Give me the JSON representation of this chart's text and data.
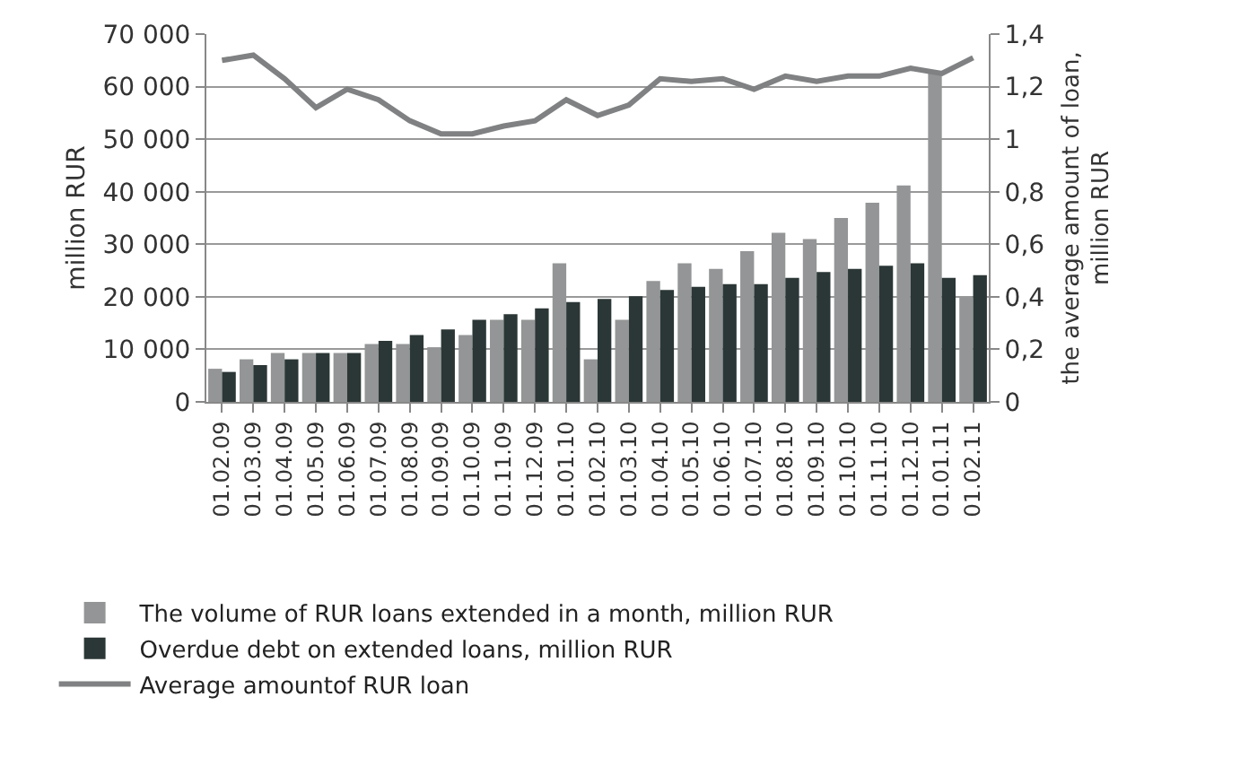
{
  "chart_data": {
    "type": "bar",
    "ylabel": "million RUR",
    "y2label": "the average amount of loan,\nmillion RUR",
    "categories": [
      "01.02.09",
      "01.03.09",
      "01.04.09",
      "01.05.09",
      "01.06.09",
      "01.07.09",
      "01.08.09",
      "01.09.09",
      "01.10.09",
      "01.11.09",
      "01.12.09",
      "01.01.10",
      "01.02.10",
      "01.03.10",
      "01.04.10",
      "01.05.10",
      "01.06.10",
      "01.07.10",
      "01.08.10",
      "01.09.10",
      "01.10.10",
      "01.11.10",
      "01.12.10",
      "01.01.11",
      "01.02.11"
    ],
    "series": [
      {
        "name": "The volume of RUR loans extended in a month, million RUR",
        "color": "#939596",
        "values": [
          6300,
          8100,
          9300,
          9300,
          9300,
          11000,
          11000,
          10400,
          12700,
          15600,
          15600,
          26400,
          8100,
          15600,
          23000,
          26400,
          25300,
          28700,
          32200,
          31000,
          35000,
          37900,
          41200,
          62600,
          19900
        ]
      },
      {
        "name": "Overdue debt on extended loans, million RUR",
        "color": "#2b3736",
        "values": [
          5700,
          7000,
          8100,
          9300,
          9300,
          11600,
          12700,
          13800,
          15600,
          16700,
          17800,
          19000,
          19600,
          20100,
          21300,
          21900,
          22400,
          22400,
          23600,
          24700,
          25300,
          25900,
          26400,
          23600,
          24100
        ]
      },
      {
        "name": "Average amountof RUR loan",
        "type": "line",
        "axis": "y2",
        "color": "#7f8182",
        "values": [
          1.3,
          1.32,
          1.23,
          1.12,
          1.19,
          1.15,
          1.07,
          1.02,
          1.02,
          1.05,
          1.07,
          1.15,
          1.09,
          1.13,
          1.23,
          1.22,
          1.23,
          1.19,
          1.24,
          1.22,
          1.24,
          1.24,
          1.27,
          1.25,
          1.31
        ]
      }
    ],
    "ylim": [
      0,
      70000
    ],
    "yticks": [
      0,
      {
        "value": 10000,
        "label": "10 000"
      },
      {
        "value": 20000,
        "label": "20 000"
      },
      {
        "value": 30000,
        "label": "30 000"
      },
      {
        "value": 40000,
        "label": "40 000"
      },
      {
        "value": 50000,
        "label": "50 000"
      },
      {
        "value": 60000,
        "label": "60 000"
      },
      {
        "value": 70000,
        "label": "70 000"
      }
    ],
    "y2lim": [
      0,
      1.4
    ],
    "y2ticks": [
      0,
      {
        "value": 0.2,
        "label": "0,2"
      },
      {
        "value": 0.4,
        "label": "0,4"
      },
      {
        "value": 0.6,
        "label": "0,6"
      },
      {
        "value": 0.8,
        "label": "0,8"
      },
      1,
      {
        "value": 1.2,
        "label": "1,2"
      },
      {
        "value": 1.4,
        "label": "1,4"
      }
    ],
    "grid": "y",
    "legend": "bottom",
    "marker": "none",
    "line_style": "solid"
  }
}
